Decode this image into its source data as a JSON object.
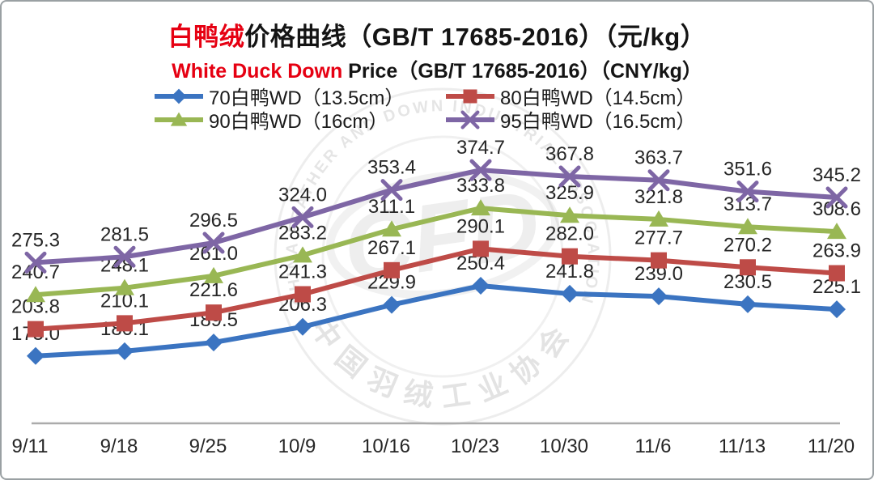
{
  "title": {
    "highlight": "白鸭绒",
    "rest": "价格曲线（GB/T 17685-2016）（元/kg）"
  },
  "subtitle": {
    "highlight": "White Duck Down",
    "rest": " Price（GB/T 17685-2016）（CNY/kg）"
  },
  "watermark": {
    "ring_text_en": "CHINA FEATHER AND DOWN INDUSTRIAL ASSOCIATION",
    "ring_text_cn": "中国羽绒工业协会",
    "center_text": "CFD"
  },
  "colors": {
    "title_highlight": "#E60012",
    "axis_line": "#ABABAB",
    "label_text": "#262626"
  },
  "chart_data": {
    "type": "line",
    "title": "白鸭绒价格曲线（GB/T 17685-2016）（元/kg）",
    "subtitle": "White Duck Down Price（GB/T 17685-2016）（CNY/kg）",
    "categories": [
      "9/11",
      "9/18",
      "9/25",
      "10/9",
      "10/16",
      "10/23",
      "10/30",
      "11/6",
      "11/13",
      "11/20"
    ],
    "series": [
      {
        "name": "70白鸭WD（13.5cm）",
        "marker": "diamond",
        "color": "#3B74C1",
        "values": [
          175.0,
          180.1,
          189.5,
          206.3,
          229.9,
          250.4,
          241.8,
          239.0,
          230.5,
          225.1
        ]
      },
      {
        "name": "80白鸭WD（14.5cm）",
        "marker": "square",
        "color": "#BE4B47",
        "values": [
          203.8,
          210.1,
          221.6,
          241.3,
          267.1,
          290.1,
          282.0,
          277.7,
          270.2,
          263.9
        ]
      },
      {
        "name": "90白鸭WD（16cm）",
        "marker": "triangle",
        "color": "#99B754",
        "values": [
          240.7,
          248.1,
          261.0,
          283.2,
          311.1,
          333.8,
          325.9,
          321.8,
          313.7,
          308.6
        ]
      },
      {
        "name": "95白鸭WD（16.5cm）",
        "marker": "x",
        "color": "#7E66A5",
        "values": [
          275.3,
          281.5,
          296.5,
          324.0,
          353.4,
          374.7,
          367.8,
          363.7,
          351.6,
          345.2
        ]
      }
    ],
    "ylim": [
      100,
      400
    ],
    "data_labels": true,
    "data_label_format": "0.0",
    "legend_position": "top",
    "grid": false
  }
}
